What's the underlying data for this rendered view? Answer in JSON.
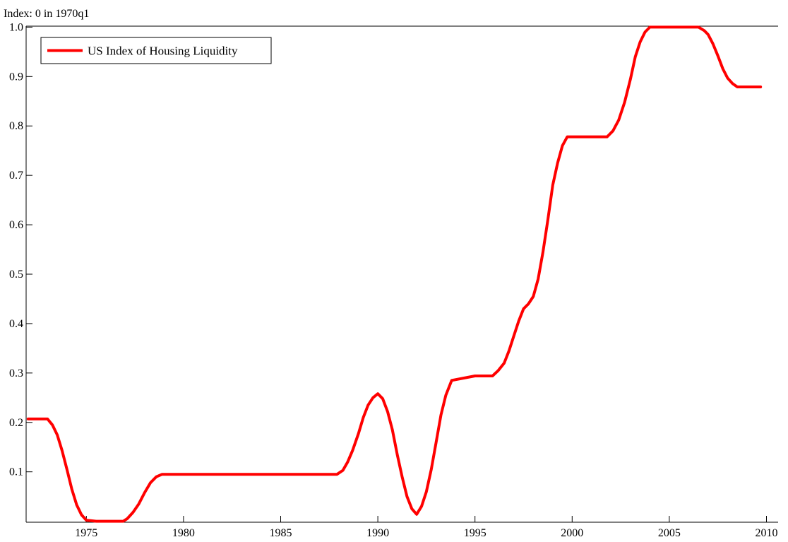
{
  "chart_data": {
    "type": "line",
    "title": "",
    "y_unit_label": "Index: 0 in 1970q1",
    "xlabel": "",
    "ylabel": "",
    "xlim": [
      1971.9,
      2010.6
    ],
    "ylim": [
      -0.002,
      1.002
    ],
    "x_ticks": [
      1975,
      1980,
      1985,
      1990,
      1995,
      2000,
      2005,
      2010
    ],
    "x_tick_labels": [
      "1975",
      "1980",
      "1985",
      "1990",
      "1995",
      "2000",
      "2005",
      "2010"
    ],
    "y_ticks": [
      0.1,
      0.2,
      0.3,
      0.4,
      0.5,
      0.6,
      0.7,
      0.8,
      0.9,
      1.0
    ],
    "y_tick_labels": [
      "0.1",
      "0.2",
      "0.3",
      "0.4",
      "0.5",
      "0.6",
      "0.7",
      "0.8",
      "0.9",
      "1.0"
    ],
    "grid": false,
    "legend_position": "top-left",
    "series": [
      {
        "name": "US Index of Housing Liquidity",
        "color": "#ff0000",
        "x": [
          1972.0,
          1972.8,
          1973.0,
          1973.25,
          1973.5,
          1973.75,
          1974.0,
          1974.25,
          1974.5,
          1974.75,
          1975.0,
          1975.5,
          1976.0,
          1976.5,
          1976.9,
          1977.1,
          1977.4,
          1977.7,
          1978.0,
          1978.3,
          1978.6,
          1978.9,
          1980.0,
          1985.0,
          1987.9,
          1988.2,
          1988.45,
          1988.7,
          1989.0,
          1989.25,
          1989.5,
          1989.75,
          1990.0,
          1990.25,
          1990.5,
          1990.75,
          1991.0,
          1991.25,
          1991.5,
          1991.75,
          1992.0,
          1992.25,
          1992.5,
          1992.75,
          1993.0,
          1993.25,
          1993.5,
          1993.8,
          1995.0,
          1995.9,
          1996.2,
          1996.5,
          1996.75,
          1997.0,
          1997.25,
          1997.5,
          1997.75,
          1998.0,
          1998.25,
          1998.5,
          1998.75,
          1999.0,
          1999.25,
          1999.5,
          1999.75,
          2000.0,
          2001.8,
          2002.1,
          2002.4,
          2002.7,
          2003.0,
          2003.25,
          2003.5,
          2003.75,
          2004.0,
          2005.0,
          2006.5,
          2006.8,
          2007.0,
          2007.25,
          2007.5,
          2007.75,
          2008.0,
          2008.25,
          2008.5,
          2008.75,
          2009.0,
          2009.7
        ],
        "values": [
          0.207,
          0.207,
          0.207,
          0.195,
          0.175,
          0.143,
          0.105,
          0.065,
          0.033,
          0.013,
          0.002,
          0.0,
          0.0,
          0.0,
          0.0,
          0.005,
          0.018,
          0.035,
          0.058,
          0.078,
          0.09,
          0.095,
          0.095,
          0.095,
          0.095,
          0.103,
          0.12,
          0.143,
          0.177,
          0.21,
          0.235,
          0.25,
          0.258,
          0.248,
          0.222,
          0.185,
          0.135,
          0.09,
          0.05,
          0.025,
          0.014,
          0.03,
          0.06,
          0.105,
          0.16,
          0.215,
          0.255,
          0.285,
          0.294,
          0.294,
          0.305,
          0.32,
          0.345,
          0.375,
          0.405,
          0.43,
          0.44,
          0.455,
          0.49,
          0.545,
          0.61,
          0.68,
          0.725,
          0.76,
          0.778,
          0.778,
          0.778,
          0.79,
          0.812,
          0.848,
          0.895,
          0.94,
          0.97,
          0.99,
          1.0,
          1.0,
          1.0,
          0.993,
          0.985,
          0.966,
          0.942,
          0.916,
          0.897,
          0.886,
          0.879,
          0.879,
          0.879,
          0.879
        ]
      }
    ]
  }
}
